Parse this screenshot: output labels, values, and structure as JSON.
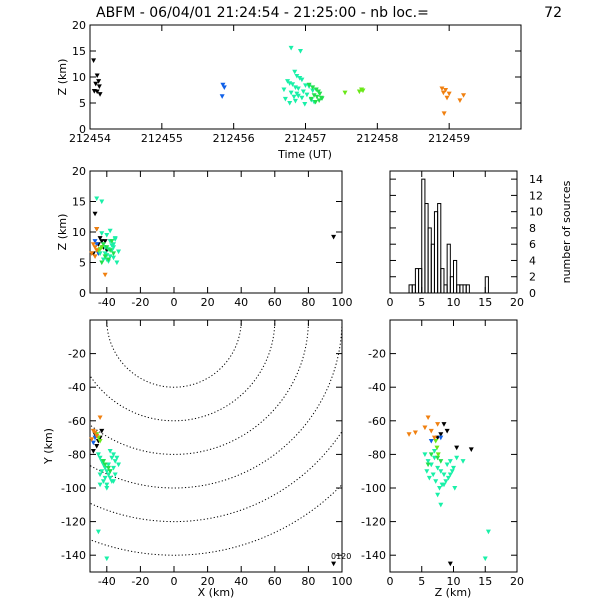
{
  "figure": {
    "title": "ABFM - 06/04/01 21:24:54 - 21:25:00 - nb loc.=",
    "count": "72",
    "corner_label": "0120"
  },
  "colors": {
    "black": "#000000",
    "blue": "#1060e8",
    "cyan": "#19f0a8",
    "green": "#22e04c",
    "lime": "#6ae818",
    "orange": "#f08010"
  },
  "chart_data": [
    {
      "id": "time_height",
      "type": "scatter",
      "xlabel": "Time (UT)",
      "ylabel": "Z (km)",
      "xlim": [
        212454,
        212460
      ],
      "ylim": [
        0,
        20
      ],
      "xticks": [
        "212454",
        "212455",
        "212456",
        "212457",
        "212458",
        "212459"
      ],
      "yticks": [
        "0",
        "5",
        "10",
        "15",
        "20"
      ],
      "series": [
        {
          "color": "black",
          "x": [
            212454.05,
            212454.1,
            212454.12,
            212454.08,
            212454.13,
            212454.06,
            212454.1,
            212454.14
          ],
          "y": [
            13.2,
            10.3,
            9.2,
            8.7,
            8.2,
            7.3,
            7.2,
            6.7
          ]
        },
        {
          "color": "blue",
          "x": [
            212455.85,
            212455.87,
            212455.84
          ],
          "y": [
            8.5,
            8.0,
            6.3
          ]
        },
        {
          "color": "cyan",
          "x": [
            212456.8,
            212456.93,
            212456.85,
            212456.88,
            212456.92,
            212456.95,
            212456.75,
            212456.78,
            212456.82,
            212457.0,
            212457.05,
            212456.86,
            212456.9,
            212456.7,
            212457.1,
            212456.97,
            212456.8,
            212456.88,
            212457.02,
            212456.9,
            212456.84,
            212456.95,
            212456.72,
            212457.08,
            212456.86,
            212457.12,
            212456.78,
            212456.99
          ],
          "y": [
            15.6,
            15.0,
            11.0,
            10.2,
            9.8,
            9.5,
            9.2,
            8.8,
            8.6,
            8.4,
            8.2,
            8.0,
            7.8,
            7.6,
            7.4,
            7.2,
            7.0,
            6.8,
            6.6,
            6.4,
            6.2,
            6.0,
            5.8,
            5.6,
            5.4,
            5.2,
            5.0,
            4.8
          ]
        },
        {
          "color": "green",
          "x": [
            212457.05,
            212457.1,
            212457.15,
            212457.18,
            212457.2,
            212457.12,
            212457.16,
            212457.22,
            212457.08,
            212457.19,
            212457.14,
            212457.23
          ],
          "y": [
            8.5,
            8.0,
            7.6,
            7.2,
            6.8,
            6.5,
            6.2,
            6.0,
            5.8,
            5.5,
            5.2,
            5.9
          ]
        },
        {
          "color": "lime",
          "x": [
            212457.55,
            212457.75,
            212457.78,
            212457.8
          ],
          "y": [
            7.0,
            7.2,
            7.6,
            7.4
          ]
        },
        {
          "color": "orange",
          "x": [
            212458.9,
            212458.95,
            212458.92,
            212459.0,
            212458.97,
            212459.15,
            212458.93,
            212459.2
          ],
          "y": [
            7.8,
            7.5,
            7.0,
            6.8,
            6.0,
            5.5,
            3.0,
            6.5
          ]
        }
      ]
    },
    {
      "id": "x_height",
      "type": "scatter",
      "ylabel": "Z (km)",
      "xlim": [
        -50,
        100
      ],
      "ylim": [
        0,
        20
      ],
      "xticks": [
        "-40",
        "-20",
        "0",
        "20",
        "40",
        "60",
        "80",
        "100"
      ],
      "yticks": [
        "0",
        "5",
        "10",
        "15",
        "20"
      ],
      "series": [
        {
          "color": "black",
          "x": [
            -47,
            -46,
            -44,
            -43,
            -41,
            -45,
            -42,
            -40,
            -48,
            95
          ],
          "y": [
            13.0,
            10.5,
            9.0,
            8.5,
            8.5,
            8.0,
            7.5,
            7.0,
            6.5,
            9.2
          ]
        },
        {
          "color": "blue",
          "x": [
            -47,
            -46,
            -45
          ],
          "y": [
            8.5,
            8.0,
            6.5
          ]
        },
        {
          "color": "cyan",
          "x": [
            -46,
            -43,
            -35,
            -40,
            -38,
            -36,
            -41,
            -39,
            -37,
            -33,
            -44,
            -40,
            -38,
            -36,
            -42,
            -39,
            -34,
            -41,
            -37,
            -35,
            -43,
            -38,
            -36,
            -40
          ],
          "y": [
            15.5,
            15.0,
            9.0,
            9.5,
            8.5,
            8.0,
            7.5,
            7.2,
            7.0,
            6.8,
            6.5,
            6.2,
            6.0,
            5.8,
            5.5,
            5.2,
            5.0,
            6.5,
            7.8,
            8.8,
            9.8,
            10.2,
            7.5,
            5.5
          ]
        },
        {
          "color": "green",
          "x": [
            -42,
            -40,
            -38,
            -36,
            -41,
            -39,
            -37,
            -43
          ],
          "y": [
            8.0,
            7.5,
            7.0,
            6.5,
            6.0,
            5.5,
            8.5,
            5.0
          ]
        },
        {
          "color": "lime",
          "x": [
            -44,
            -43,
            -45
          ],
          "y": [
            7.2,
            7.5,
            7.0
          ]
        },
        {
          "color": "orange",
          "x": [
            -48,
            -47,
            -46,
            -49,
            -47,
            -41,
            -46
          ],
          "y": [
            8.0,
            7.5,
            7.0,
            6.5,
            6.0,
            3.0,
            10.5
          ]
        }
      ]
    },
    {
      "id": "histogram",
      "type": "bar",
      "ylabel": "number of sources",
      "xlim": [
        0,
        20
      ],
      "ylim": [
        0,
        15
      ],
      "xticks": [
        "0",
        "5",
        "10",
        "15",
        "20"
      ],
      "yticks": [
        "0",
        "2",
        "4",
        "6",
        "8",
        "10",
        "12",
        "14"
      ],
      "bin_width": 0.5,
      "bins_start": [
        2.5,
        3.0,
        3.5,
        4.0,
        4.5,
        5.0,
        5.5,
        6.0,
        6.5,
        7.0,
        7.5,
        8.0,
        8.5,
        9.0,
        9.5,
        10.0,
        10.5,
        11.0,
        11.5,
        12.0,
        12.5,
        13.0,
        13.5,
        14.0,
        14.5,
        15.0,
        15.5
      ],
      "values": [
        0,
        1,
        1,
        3,
        3,
        14,
        11,
        8,
        6,
        10,
        11,
        3,
        1,
        6,
        2,
        4,
        1,
        1,
        1,
        1,
        0,
        0,
        0,
        0,
        0,
        2,
        0
      ]
    },
    {
      "id": "plan_view",
      "type": "scatter",
      "xlabel": "X (km)",
      "ylabel": "Y (km)",
      "xlim": [
        -50,
        100
      ],
      "ylim": [
        -150,
        0
      ],
      "xticks": [
        "-40",
        "-20",
        "0",
        "20",
        "40",
        "60",
        "80",
        "100"
      ],
      "yticks": [
        "-20",
        "-40",
        "-60",
        "-80",
        "-100",
        "-120",
        "-140"
      ],
      "contour_center": [
        0,
        0
      ],
      "contour_radii_km": [
        40,
        60,
        80,
        100,
        120,
        140
      ],
      "series": [
        {
          "color": "black",
          "x": [
            -47,
            -45,
            -46,
            -48,
            -44,
            -43,
            95
          ],
          "y": [
            -68,
            -72,
            -75,
            -78,
            -70,
            -66,
            -145
          ]
        },
        {
          "color": "blue",
          "x": [
            -47,
            -48
          ],
          "y": [
            -70,
            -73
          ]
        },
        {
          "color": "cyan",
          "x": [
            -45,
            -44,
            -43,
            -42,
            -41,
            -40,
            -39,
            -38,
            -37,
            -36,
            -35,
            -34,
            -44,
            -42,
            -40,
            -38,
            -36,
            -35,
            -43,
            -41,
            -39,
            -37,
            -44,
            -40,
            -36,
            -42,
            -38,
            -33,
            -45,
            -40
          ],
          "y": [
            -80,
            -82,
            -84,
            -86,
            -88,
            -90,
            -92,
            -94,
            -96,
            -88,
            -84,
            -82,
            -92,
            -96,
            -98,
            -78,
            -80,
            -92,
            -90,
            -94,
            -86,
            -82,
            -98,
            -100,
            -96,
            -84,
            -90,
            -86,
            -126,
            -142
          ]
        },
        {
          "color": "green",
          "x": [
            -42,
            -41,
            -39,
            -38
          ],
          "y": [
            -84,
            -86,
            -88,
            -90
          ]
        },
        {
          "color": "lime",
          "x": [
            -46,
            -45,
            -44
          ],
          "y": [
            -68,
            -70,
            -72
          ]
        },
        {
          "color": "orange",
          "x": [
            -48,
            -47,
            -46,
            -44,
            -49
          ],
          "y": [
            -66,
            -67,
            -69,
            -58,
            -71
          ]
        }
      ]
    },
    {
      "id": "z_y",
      "type": "scatter",
      "xlabel": "Z (km)",
      "xlim": [
        0,
        20
      ],
      "ylim": [
        -150,
        0
      ],
      "xticks": [
        "0",
        "5",
        "10",
        "15",
        "20"
      ],
      "yticks": [
        "-20",
        "-40",
        "-60",
        "-80",
        "-100",
        "-120",
        "-140"
      ],
      "series": [
        {
          "color": "black",
          "x": [
            8.5,
            9.0,
            8.0,
            7.5,
            10.5,
            12.8,
            9.5
          ],
          "y": [
            -62,
            -66,
            -68,
            -70,
            -76,
            -77,
            -145
          ]
        },
        {
          "color": "blue",
          "x": [
            6.5,
            8.0
          ],
          "y": [
            -72,
            -70
          ]
        },
        {
          "color": "cyan",
          "x": [
            5.5,
            6.0,
            6.5,
            7.0,
            7.5,
            8.0,
            8.5,
            9.0,
            9.5,
            10.0,
            10.5,
            6.2,
            7.2,
            8.2,
            9.2,
            5.8,
            6.8,
            7.8,
            8.8,
            9.8,
            6.5,
            7.5,
            8.5,
            9.5,
            10.2,
            7.0,
            15.5,
            15.0,
            8.0,
            11.5
          ],
          "y": [
            -80,
            -84,
            -86,
            -82,
            -88,
            -90,
            -92,
            -86,
            -84,
            -88,
            -82,
            -94,
            -96,
            -98,
            -94,
            -90,
            -92,
            -100,
            -96,
            -90,
            -86,
            -104,
            -98,
            -92,
            -100,
            -78,
            -126,
            -142,
            -110,
            -84
          ]
        },
        {
          "color": "green",
          "x": [
            6.5,
            7.5,
            8.0,
            6.0
          ],
          "y": [
            -80,
            -82,
            -84,
            -86
          ]
        },
        {
          "color": "lime",
          "x": [
            7.2,
            7.4,
            7.6
          ],
          "y": [
            -72,
            -76,
            -80
          ]
        },
        {
          "color": "orange",
          "x": [
            3.0,
            6.0,
            6.5,
            7.0,
            5.5,
            7.5,
            4.0
          ],
          "y": [
            -68,
            -58,
            -66,
            -70,
            -64,
            -62,
            -67
          ]
        }
      ]
    }
  ]
}
